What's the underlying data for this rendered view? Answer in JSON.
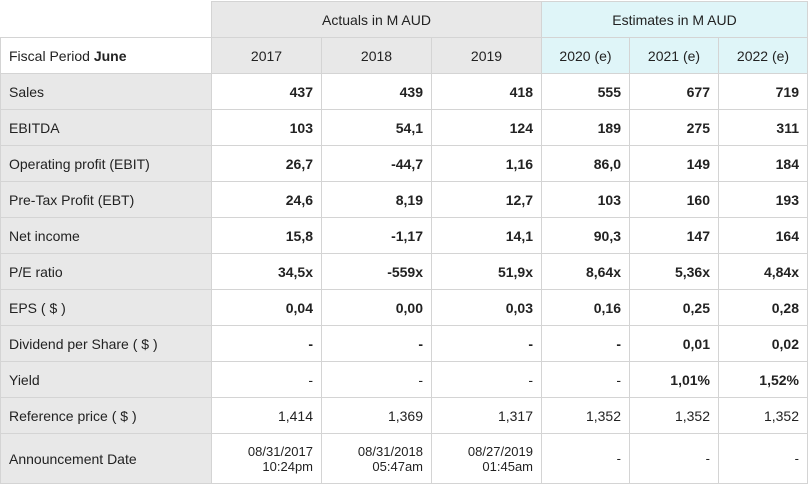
{
  "header": {
    "fiscal_period_prefix": "Fiscal Period",
    "fiscal_period_month": "June",
    "actuals_label": "Actuals in M AUD",
    "estimates_label": "Estimates in M AUD",
    "years": [
      "2017",
      "2018",
      "2019",
      "2020 (e)",
      "2021 (e)",
      "2022 (e)"
    ]
  },
  "rows": [
    {
      "label": "Sales",
      "values": [
        "437",
        "439",
        "418",
        "555",
        "677",
        "719"
      ],
      "bold": true
    },
    {
      "label": "EBITDA",
      "values": [
        "103",
        "54,1",
        "124",
        "189",
        "275",
        "311"
      ],
      "bold": true
    },
    {
      "label": "Operating profit (EBIT)",
      "values": [
        "26,7",
        "-44,7",
        "1,16",
        "86,0",
        "149",
        "184"
      ],
      "bold": true
    },
    {
      "label": "Pre-Tax Profit (EBT)",
      "values": [
        "24,6",
        "8,19",
        "12,7",
        "103",
        "160",
        "193"
      ],
      "bold": true
    },
    {
      "label": "Net income",
      "values": [
        "15,8",
        "-1,17",
        "14,1",
        "90,3",
        "147",
        "164"
      ],
      "bold": true
    },
    {
      "label": "P/E ratio",
      "values": [
        "34,5x",
        "-559x",
        "51,9x",
        "8,64x",
        "5,36x",
        "4,84x"
      ],
      "bold": true
    },
    {
      "label": "EPS ( $ )",
      "values": [
        "0,04",
        "0,00",
        "0,03",
        "0,16",
        "0,25",
        "0,28"
      ],
      "bold": true
    },
    {
      "label": "Dividend per Share ( $ )",
      "values": [
        "-",
        "-",
        "-",
        "-",
        "0,01",
        "0,02"
      ],
      "bold": true
    },
    {
      "label": "Yield",
      "values": [
        "-",
        "-",
        "-",
        "-",
        "1,01%",
        "1,52%"
      ],
      "bold": "mixed"
    },
    {
      "label": "Reference price ( $ )",
      "values": [
        "1,414",
        "1,369",
        "1,317",
        "1,352",
        "1,352",
        "1,352"
      ],
      "bold": false
    }
  ],
  "announcement": {
    "label": "Announcement Date",
    "dates": [
      {
        "date": "08/31/2017",
        "time": "10:24pm"
      },
      {
        "date": "08/31/2018",
        "time": "05:47am"
      },
      {
        "date": "08/27/2019",
        "time": "01:45am"
      },
      {
        "date": "-",
        "time": ""
      },
      {
        "date": "-",
        "time": ""
      },
      {
        "date": "-",
        "time": ""
      }
    ]
  }
}
